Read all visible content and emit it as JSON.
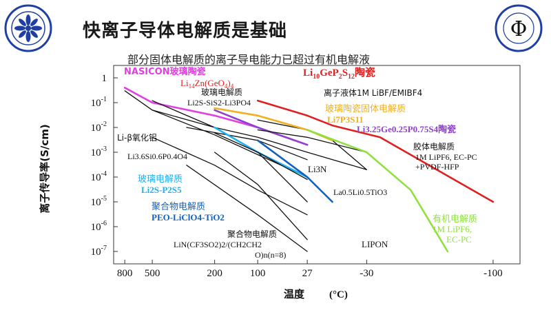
{
  "slide": {
    "title": "快离子导体电解质是基础",
    "subtitle": "部分固体电解质的离子导电能力已超过有机电解液"
  },
  "logos": {
    "left": {
      "text": "Chinese Academy of Sciences",
      "text_cn": "中国科学院",
      "color": "#1f3fa3"
    },
    "right": {
      "text": "Institute of Physics CAS",
      "text_cn": "中国科学院物理研究所",
      "glyph": "Φ",
      "color": "#1f3fa3"
    }
  },
  "chart_data": {
    "type": "line",
    "xlabel": "温度",
    "xunit": "(°C)",
    "ylabel": "离子传导率(S/cm)",
    "x_tick_labels": [
      "800",
      "500",
      "200",
      "100",
      "27",
      "-30",
      "-100"
    ],
    "y_tick_labels": [
      "1",
      "10-1",
      "10-2",
      "10-3",
      "10-4",
      "10-5",
      "10-6",
      "10-7"
    ],
    "y_log_range": [
      -7.5,
      0.5
    ],
    "grid": false,
    "series": [
      {
        "name": "NASICON玻璃陶瓷",
        "color": "#e040e0",
        "points": [
          [
            800,
            0.4
          ],
          [
            500,
            0.1
          ],
          [
            200,
            0.03
          ],
          [
            100,
            0.01
          ],
          [
            27,
            0.002
          ]
        ]
      },
      {
        "name": "Li10GeP2S12陶瓷",
        "color": "#e02020",
        "points": [
          [
            100,
            0.12
          ],
          [
            27,
            0.03
          ],
          [
            0,
            0.012
          ],
          [
            -40,
            0.004
          ],
          [
            -100,
            1e-05
          ]
        ]
      },
      {
        "name": "Li14Zn(GeO4)4",
        "color": "#111111",
        "points": [
          [
            500,
            0.12
          ],
          [
            200,
            0.01
          ],
          [
            100,
            0.001
          ],
          [
            27,
            1e-05
          ]
        ]
      },
      {
        "name": "玻璃电解质 Li2S-SiS2-Li3PO4",
        "color": "#111111",
        "points": [
          [
            500,
            0.05
          ],
          [
            200,
            0.01
          ],
          [
            100,
            0.004
          ],
          [
            27,
            0.001
          ],
          [
            -30,
            0.0002
          ]
        ]
      },
      {
        "name": "离子液体1M LiBF/EMIBF4",
        "color": "#111111",
        "points": [
          [
            100,
            0.02
          ],
          [
            27,
            0.008
          ],
          [
            0,
            0.003
          ],
          [
            -30,
            0.0002
          ]
        ]
      },
      {
        "name": "玻璃陶瓷固体电解质 Li7P3S11",
        "color": "#f0b020",
        "points": [
          [
            200,
            0.06
          ],
          [
            100,
            0.03
          ],
          [
            27,
            0.008
          ],
          [
            0,
            0.003
          ]
        ]
      },
      {
        "name": "Li3.25Ge0.25P0.75S4陶瓷",
        "color": "#9040d0",
        "points": [
          [
            200,
            0.05
          ],
          [
            100,
            0.01
          ],
          [
            27,
            0.002
          ]
        ]
      },
      {
        "name": "Li-β氧化铝",
        "color": "#111111",
        "points": [
          [
            800,
            0.3
          ],
          [
            500,
            0.05
          ],
          [
            200,
            0.005
          ],
          [
            100,
            0.0008
          ],
          [
            27,
            0.0001
          ]
        ]
      },
      {
        "name": "Li3.6Si0.6P0.4O4",
        "color": "#111111",
        "points": [
          [
            500,
            0.004
          ],
          [
            200,
            0.0003
          ],
          [
            100,
            3e-05
          ],
          [
            27,
            3e-06
          ]
        ]
      },
      {
        "name": "Li3N",
        "color": "#111111",
        "points": [
          [
            300,
            0.01
          ],
          [
            100,
            0.003
          ],
          [
            27,
            0.0005
          ]
        ]
      },
      {
        "name": "胶体电解质 1M LiPF6, EC-PC +PVDF-HFP",
        "color": "#111111",
        "points": [
          [
            100,
            0.008
          ],
          [
            27,
            0.004
          ],
          [
            -30,
            0.001
          ]
        ]
      },
      {
        "name": "玻璃电解质 Li2S-P2S5",
        "color": "#20b0f0",
        "points": [
          [
            200,
            0.01
          ],
          [
            100,
            0.001
          ],
          [
            27,
            0.0001
          ]
        ]
      },
      {
        "name": "La0.5Li0.5TiO3",
        "color": "#111111",
        "points": [
          [
            200,
            0.006
          ],
          [
            100,
            0.001
          ],
          [
            27,
            8e-05
          ]
        ]
      },
      {
        "name": "聚合物电解质 PEO-LiClO4-TiO2",
        "color": "#1060c0",
        "points": [
          [
            100,
            0.003
          ],
          [
            27,
            0.0001
          ],
          [
            0,
            1e-05
          ]
        ]
      },
      {
        "name": "有机电解质 1M LiPF6, EC-PC",
        "color": "#90e040",
        "points": [
          [
            27,
            0.008
          ],
          [
            -30,
            0.001
          ],
          [
            -60,
            3e-05
          ],
          [
            -80,
            1e-07
          ]
        ]
      },
      {
        "name": "聚合物电解质 LiN(CF3SO2)2/(CH2CH2O)n(n=8)",
        "color": "#111111",
        "points": [
          [
            200,
            0.001
          ],
          [
            100,
            5e-05
          ],
          [
            27,
            3e-07
          ]
        ]
      },
      {
        "name": "LIPON",
        "color": "#111111",
        "points": [
          [
            300,
            0.0003
          ],
          [
            100,
            3e-06
          ],
          [
            27,
            1e-07
          ]
        ]
      }
    ]
  },
  "labels": {
    "nasicon": "NASICON玻璃陶瓷",
    "lgps_a": "Li",
    "lgps_b": "10",
    "lgps_c": "GeP",
    "lgps_d": "2",
    "lgps_e": "S",
    "lgps_f": "12",
    "lgps_g": "陶瓷",
    "lizn_a": "Li",
    "lizn_b": "14",
    "lizn_c": "Zn(GeO",
    "lizn_d": "4",
    "lizn_e": ")",
    "lizn_f": "4",
    "glass1": "玻璃电解质",
    "glass1_formula": "Li2S-SiS2-Li3PO4",
    "ionic_liquid": "离子液体1M LiBF/EMIBF4",
    "glass_ceramic": "玻璃陶瓷固体电解质",
    "li7p3s11": "Li7P3S11",
    "ligeps": "Li3.25Ge0.25P0.75S4陶瓷",
    "beta": "Li-β氧化铝",
    "lisip": "Li3.6Si0.6P0.4O4",
    "li3n": "Li3N",
    "gel1": "胶体电解质",
    "gel2": "1M LiPF6, EC-PC",
    "gel3": "+PVDF-HFP",
    "glass2": "玻璃电解质",
    "glass2_formula": "Li2S-P2S5",
    "llto": "La0.5Li0.5TiO3",
    "polymer1": "聚合物电解质",
    "polymer1_formula": "PEO-LiClO4-TiO2",
    "organic1": "有机电解质",
    "organic2": "1M LiPF6,",
    "organic3": "EC-PC",
    "polymer2": "聚合物电解质",
    "polymer2_f1": "LiN(CF3SO2)2/(CH2CH2",
    "polymer2_f2": "O)n(n=8)",
    "lipon": "LIPON"
  }
}
